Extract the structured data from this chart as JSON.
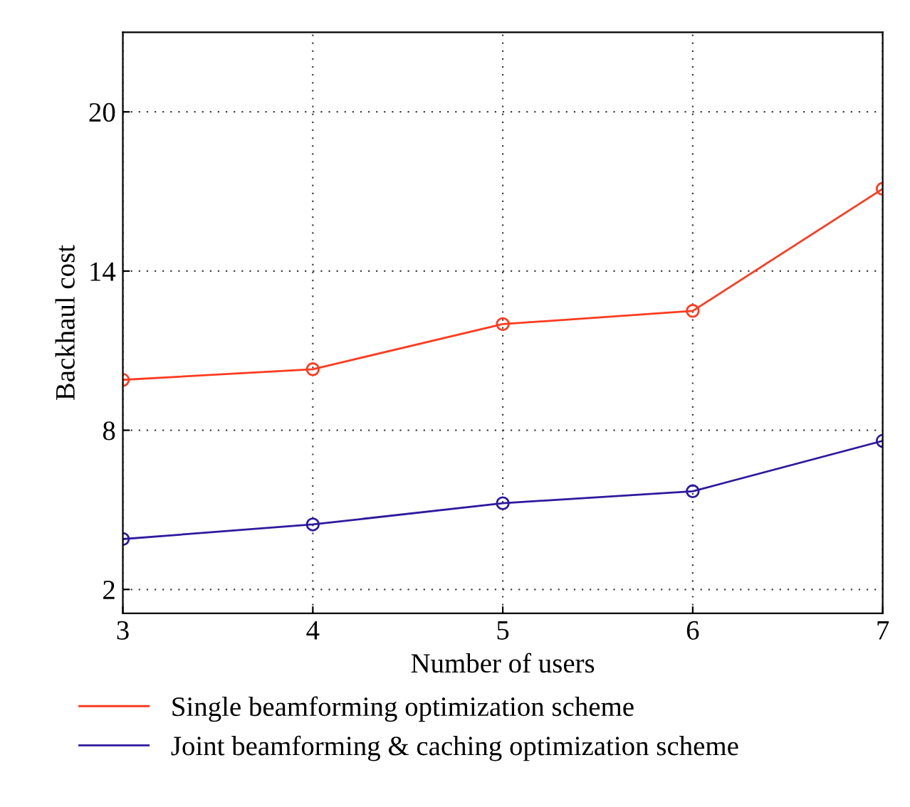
{
  "chart_data": {
    "type": "line",
    "xlabel": "Number of users",
    "ylabel": "Backhaul cost",
    "x": [
      3,
      4,
      5,
      6,
      7
    ],
    "series": [
      {
        "name": "Single beamforming optimization scheme",
        "color": "#ff3b1f",
        "values": [
          9.9,
          10.3,
          12.0,
          12.5,
          17.1
        ]
      },
      {
        "name": "Joint beamforming & caching optimization scheme",
        "color": "#2e1a9e",
        "values": [
          3.9,
          4.45,
          5.25,
          5.7,
          7.6
        ]
      }
    ],
    "xlim": [
      3,
      7
    ],
    "xticks": [
      3,
      4,
      5,
      6,
      7
    ],
    "ylim": [
      1.1,
      23
    ],
    "yticks": [
      2,
      8,
      14,
      20
    ],
    "grid": true,
    "legend": "bottom",
    "marker": "circle",
    "line_style": "solid"
  }
}
